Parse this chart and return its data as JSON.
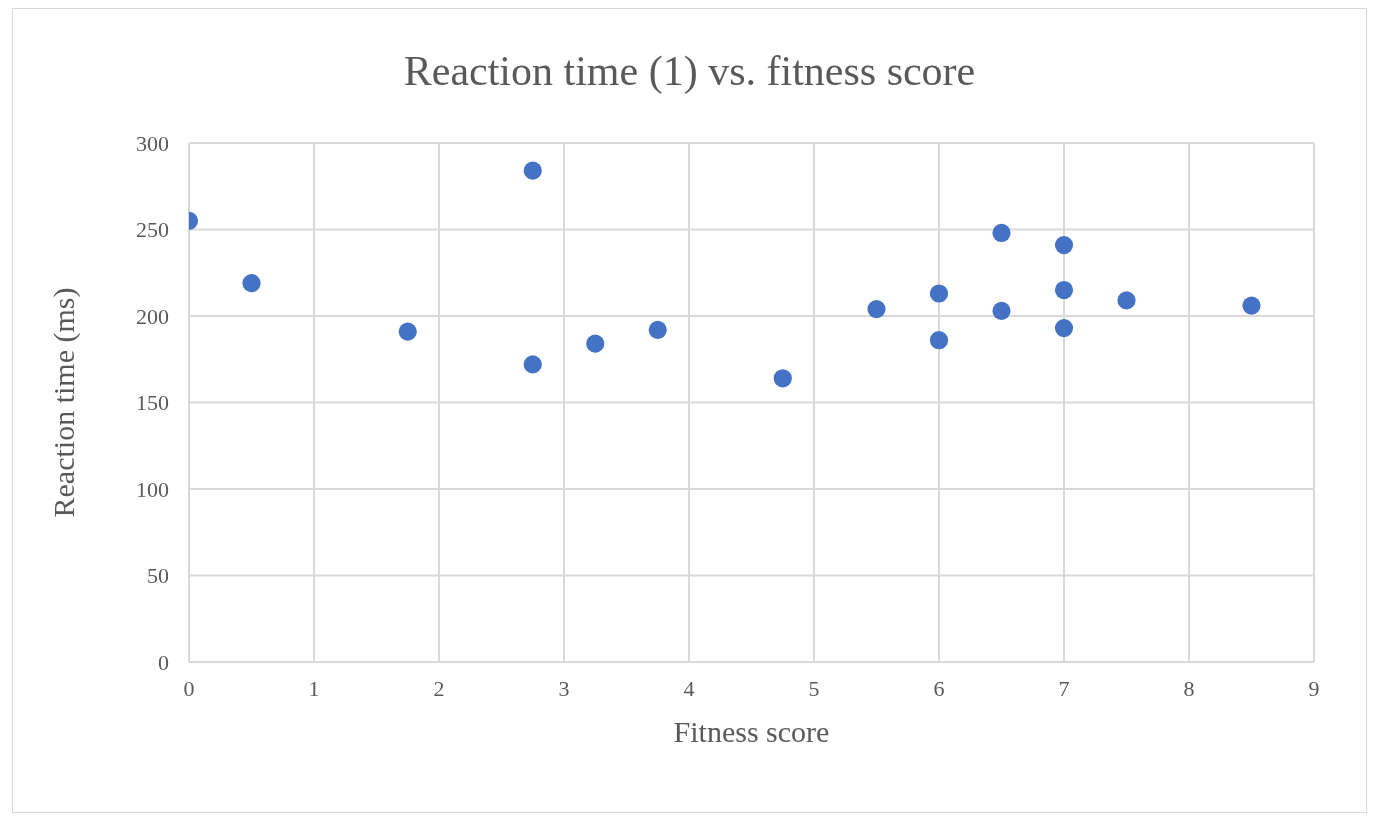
{
  "chart_data": {
    "type": "scatter",
    "title": "Reaction time (1) vs. fitness score",
    "xlabel": "Fitness score",
    "ylabel": "Reaction time (ms)",
    "x": [
      0,
      0.5,
      1.75,
      2.75,
      2.75,
      3.25,
      3.75,
      4.75,
      5.5,
      6,
      6,
      6.5,
      6.5,
      7,
      7,
      7,
      7.5,
      8.5
    ],
    "values": [
      255,
      219,
      191,
      284,
      172,
      184,
      192,
      164,
      204,
      213,
      186,
      248,
      203,
      241,
      215,
      193,
      209,
      206
    ],
    "color": "#4472c4",
    "marker": "circle",
    "xlim": [
      0,
      9
    ],
    "xticks": [
      0,
      1,
      2,
      3,
      4,
      5,
      6,
      7,
      8,
      9
    ],
    "ylim": [
      0,
      300
    ],
    "yticks": [
      0,
      50,
      100,
      150,
      200,
      250,
      300
    ],
    "grid": true
  }
}
